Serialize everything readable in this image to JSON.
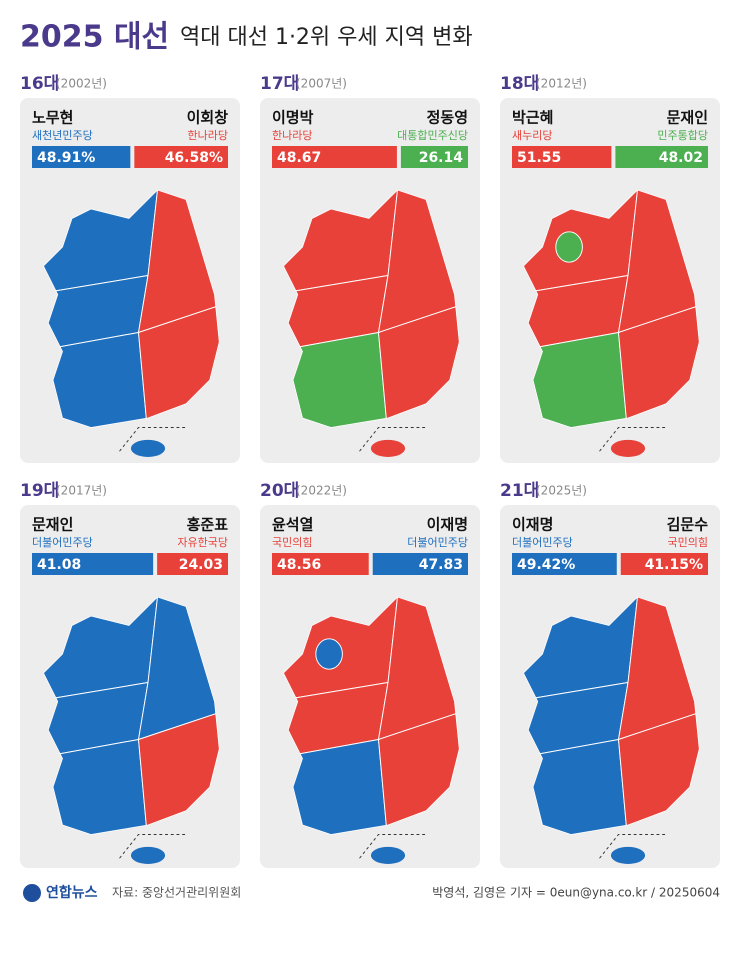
{
  "header": {
    "title_bold": "2025 대선",
    "title": "역대 대선 1·2위 우세 지역 변화"
  },
  "panels": [
    {
      "election": "16대",
      "year": "(2002년)",
      "candidates": [
        {
          "name": "노무현",
          "party": "새천년민주당",
          "value": 48.91,
          "value_label": "48.91%",
          "color": "#1f6fbf"
        },
        {
          "name": "이회창",
          "party": "한나라당",
          "value": 46.58,
          "value_label": "46.58%",
          "color": "#e8413a"
        }
      ]
    },
    {
      "election": "17대",
      "year": "(2007년)",
      "candidates": [
        {
          "name": "이명박",
          "party": "한나라당",
          "value": 48.67,
          "value_label": "48.67",
          "color": "#e8413a"
        },
        {
          "name": "정동영",
          "party": "대통합민주신당",
          "value": 26.14,
          "value_label": "26.14",
          "color": "#4caf50"
        }
      ]
    },
    {
      "election": "18대",
      "year": "(2012년)",
      "candidates": [
        {
          "name": "박근혜",
          "party": "새누리당",
          "value": 51.55,
          "value_label": "51.55",
          "color": "#e8413a"
        },
        {
          "name": "문재인",
          "party": "민주통합당",
          "value": 48.02,
          "value_label": "48.02",
          "color": "#4caf50"
        }
      ]
    },
    {
      "election": "19대",
      "year": "(2017년)",
      "candidates": [
        {
          "name": "문재인",
          "party": "더불어민주당",
          "value": 41.08,
          "value_label": "41.08",
          "color": "#1f6fbf"
        },
        {
          "name": "홍준표",
          "party": "자유한국당",
          "value": 24.03,
          "value_label": "24.03",
          "color": "#e8413a"
        }
      ]
    },
    {
      "election": "20대",
      "year": "(2022년)",
      "candidates": [
        {
          "name": "윤석열",
          "party": "국민의힘",
          "value": 48.56,
          "value_label": "48.56",
          "color": "#e8413a"
        },
        {
          "name": "이재명",
          "party": "더불어민주당",
          "value": 47.83,
          "value_label": "47.83",
          "color": "#1f6fbf"
        }
      ]
    },
    {
      "election": "21대",
      "year": "(2025년)",
      "candidates": [
        {
          "name": "이재명",
          "party": "더불어민주당",
          "value": 49.42,
          "value_label": "49.42%",
          "color": "#1f6fbf"
        },
        {
          "name": "김문수",
          "party": "국민의힘",
          "value": 41.15,
          "value_label": "41.15%",
          "color": "#e8413a"
        }
      ]
    }
  ],
  "footer": {
    "logo": "연합뉴스",
    "source": "자료: 중앙선거관리위원회",
    "credit": "박영석, 김영은 기자 = 0eun@yna.co.kr / 20250604"
  }
}
